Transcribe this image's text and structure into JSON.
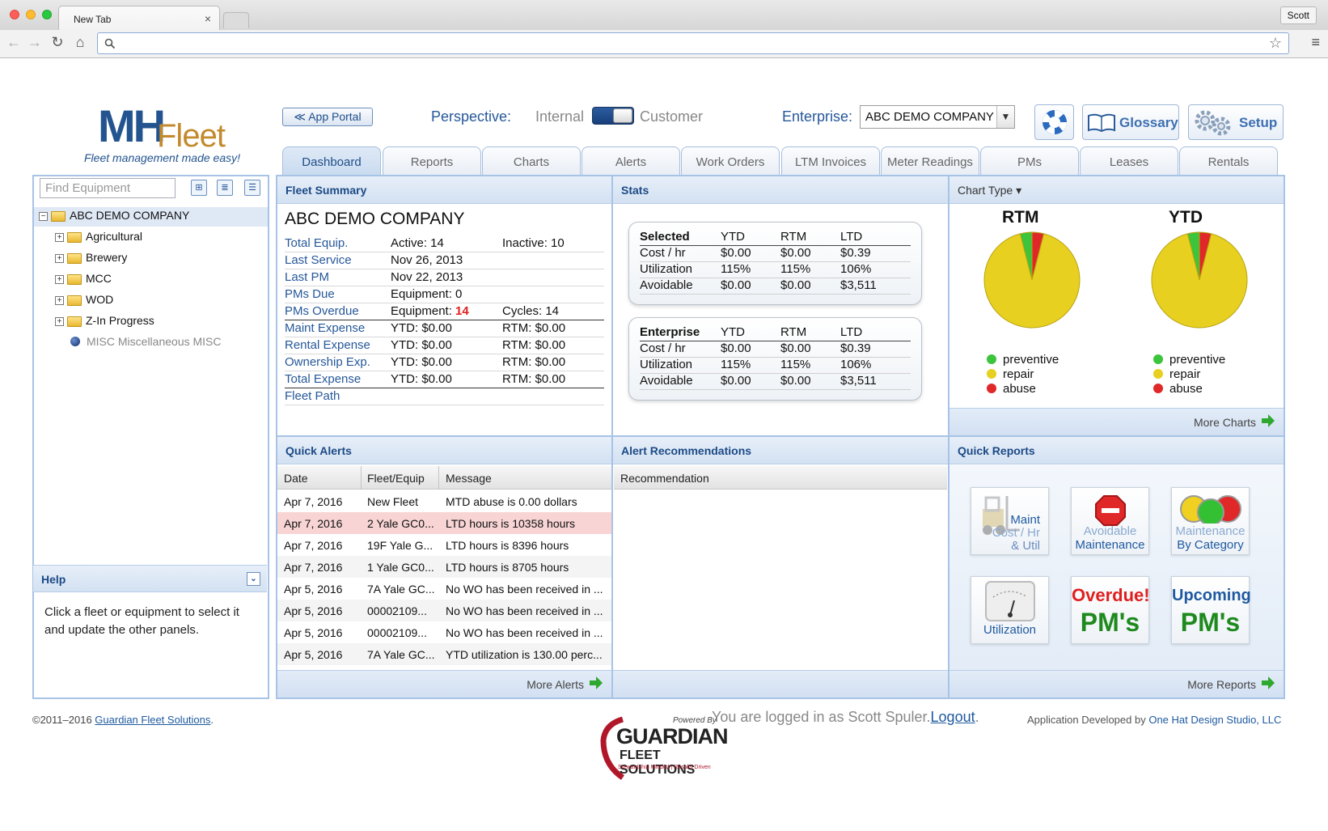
{
  "browser": {
    "tab_title": "New Tab",
    "tab_close": "×",
    "profile": "Scott",
    "nav": {
      "back": "←",
      "forward": "→",
      "reload": "↻",
      "home": "⌂"
    },
    "search_icon": "search-icon",
    "url": ""
  },
  "header": {
    "logo_mh": "MH",
    "logo_fleet": "Fleet",
    "tagline": "Fleet management made easy!",
    "app_portal": "≪ App Portal",
    "perspective_label": "Perspective:",
    "perspective_internal": "Internal",
    "perspective_customer": "Customer",
    "enterprise_label": "Enterprise:",
    "enterprise_value": "ABC DEMO COMPANY",
    "glossary": "Glossary",
    "setup": "Setup"
  },
  "tabs": [
    "Dashboard",
    "Reports",
    "Charts",
    "Alerts",
    "Work Orders",
    "LTM Invoices",
    "Meter Readings",
    "PMs",
    "Leases",
    "Rentals"
  ],
  "active_tab": "Dashboard",
  "left": {
    "search_placeholder": "Find Equipment",
    "tree_root": "ABC DEMO COMPANY",
    "tree_children": [
      "Agricultural",
      "Brewery",
      "MCC",
      "WOD",
      "Z-In Progress"
    ],
    "tree_misc": "MISC Miscellaneous MISC",
    "help_title": "Help",
    "help_text": "Click a fleet or equipment to select it and update the other panels."
  },
  "fleet_summary": {
    "title": "Fleet Summary",
    "company": "ABC DEMO COMPANY",
    "rows": [
      {
        "k": "Total Equip.",
        "a": "Active: 14",
        "b": "Inactive: 10"
      },
      {
        "k": "Last Service",
        "a": "Nov 26, 2013",
        "b": ""
      },
      {
        "k": "Last PM",
        "a": "Nov 22, 2013",
        "b": ""
      },
      {
        "k": "PMs Due",
        "a": "Equipment: 0",
        "b": ""
      },
      {
        "k": "PMs Overdue",
        "a_prefix": "Equipment: ",
        "a_red": "14",
        "b": "Cycles: 14"
      },
      {
        "k": "Maint Expense",
        "a": "YTD: $0.00",
        "b": "RTM: $0.00"
      },
      {
        "k": "Rental Expense",
        "a": "YTD: $0.00",
        "b": "RTM: $0.00"
      },
      {
        "k": "Ownership Exp.",
        "a": "YTD: $0.00",
        "b": "RTM: $0.00"
      },
      {
        "k": "Total Expense",
        "a": "YTD: $0.00",
        "b": "RTM: $0.00"
      },
      {
        "k": "Fleet Path",
        "a": "",
        "b": ""
      }
    ]
  },
  "stats": {
    "title": "Stats",
    "tables": [
      {
        "header": [
          "Selected",
          "YTD",
          "RTM",
          "LTD"
        ],
        "rows": [
          [
            "Cost / hr",
            "$0.00",
            "$0.00",
            "$0.39"
          ],
          [
            "Utilization",
            "115%",
            "115%",
            "106%"
          ],
          [
            "Avoidable",
            "$0.00",
            "$0.00",
            "$3,511"
          ]
        ]
      },
      {
        "header": [
          "Enterprise",
          "YTD",
          "RTM",
          "LTD"
        ],
        "rows": [
          [
            "Cost / hr",
            "$0.00",
            "$0.00",
            "$0.39"
          ],
          [
            "Utilization",
            "115%",
            "115%",
            "106%"
          ],
          [
            "Avoidable",
            "$0.00",
            "$0.00",
            "$3,511"
          ]
        ]
      }
    ]
  },
  "charts": {
    "chart_type_label": "Chart Type ▾",
    "more": "More Charts",
    "legend": [
      "preventive",
      "repair",
      "abuse"
    ],
    "colors": {
      "preventive": "#3cc43c",
      "repair": "#e8d020",
      "abuse": "#e02828"
    }
  },
  "chart_data": [
    {
      "type": "pie",
      "title": "RTM",
      "labels": [
        "preventive",
        "repair",
        "abuse"
      ],
      "values": [
        4,
        92,
        4
      ]
    },
    {
      "type": "pie",
      "title": "YTD",
      "labels": [
        "preventive",
        "repair",
        "abuse"
      ],
      "values": [
        4,
        92,
        4
      ]
    }
  ],
  "quick_alerts": {
    "title": "Quick Alerts",
    "columns": [
      "Date",
      "Fleet/Equip",
      "Message"
    ],
    "rows": [
      [
        "Apr 7, 2016",
        "New Fleet",
        "MTD abuse is 0.00 dollars"
      ],
      [
        "Apr 7, 2016",
        "2 Yale GC0...",
        "LTD hours is 10358 hours"
      ],
      [
        "Apr 7, 2016",
        "19F Yale G...",
        "LTD hours is 8396 hours"
      ],
      [
        "Apr 7, 2016",
        "1 Yale GC0...",
        "LTD hours is 8705 hours"
      ],
      [
        "Apr 5, 2016",
        "7A Yale GC...",
        "No WO has been received in ..."
      ],
      [
        "Apr 5, 2016",
        "00002109...",
        "No WO has been received in ..."
      ],
      [
        "Apr 5, 2016",
        "00002109...",
        "No WO has been received in ..."
      ],
      [
        "Apr 5, 2016",
        "7A Yale GC...",
        "YTD utilization is 130.00 perc..."
      ]
    ],
    "selected_row": 1,
    "more": "More Alerts"
  },
  "alert_recs": {
    "title": "Alert Recommendations",
    "column": "Recommendation"
  },
  "quick_reports": {
    "title": "Quick Reports",
    "tiles": [
      {
        "line1": "Maint",
        "line2": "Cost / Hr",
        "line3": "& Util"
      },
      {
        "line1": "Avoidable",
        "line2": "Maintenance"
      },
      {
        "line1": "Maintenance",
        "line2": "By Category"
      },
      {
        "line1": "Utilization"
      },
      {
        "line1": "Overdue!",
        "line2": "PM's"
      },
      {
        "line1": "Upcoming",
        "line2": "PM's"
      }
    ],
    "more": "More Reports"
  },
  "footer": {
    "copyright": "©2011–2016 ",
    "company_link": "Guardian Fleet Solutions",
    "period": ".",
    "logged_in": "You are logged in as Scott Spuler.",
    "logout": "Logout",
    "logout_period": ".",
    "developed_by": "Application Developed by ",
    "developer": "One Hat Design Studio, LLC",
    "logo_powered": "Powered By",
    "logo_guardian": "GUARDIAN",
    "logo_fleet": "FLEET SOLUTIONS",
    "logo_tag": "Stewardship Minded | Results Driven"
  }
}
